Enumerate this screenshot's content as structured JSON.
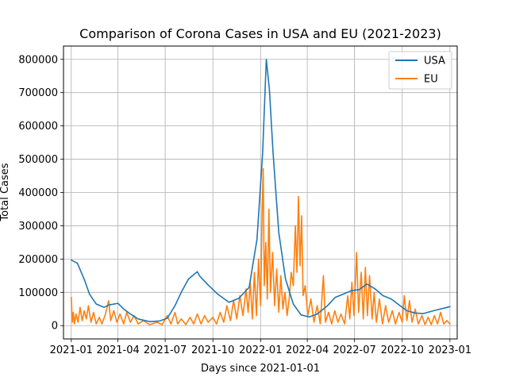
{
  "chart_data": {
    "type": "line",
    "title": "Comparison of Corona Cases in USA and EU (2021-2023)",
    "xlabel": "Days since 2021-01-01",
    "ylabel": "Total Cases",
    "grid": true,
    "legend_position": "top-right",
    "xlim": [
      "2020-12-17",
      "2023-01-15"
    ],
    "ylim": [
      -40000,
      840000
    ],
    "x_ticks": [
      {
        "date": "2021-01-01",
        "label": "2021-01"
      },
      {
        "date": "2021-04-01",
        "label": "2021-04"
      },
      {
        "date": "2021-07-01",
        "label": "2021-07"
      },
      {
        "date": "2021-10-01",
        "label": "2021-10"
      },
      {
        "date": "2022-01-01",
        "label": "2022-01"
      },
      {
        "date": "2022-04-01",
        "label": "2022-04"
      },
      {
        "date": "2022-07-01",
        "label": "2022-07"
      },
      {
        "date": "2022-10-01",
        "label": "2022-10"
      },
      {
        "date": "2023-01-01",
        "label": "2023-01"
      }
    ],
    "y_ticks": [
      0,
      100000,
      200000,
      300000,
      400000,
      500000,
      600000,
      700000,
      800000
    ],
    "series": [
      {
        "name": "USA",
        "color": "#1f77b4",
        "points": [
          [
            "2021-01-01",
            197000
          ],
          [
            "2021-01-13",
            187000
          ],
          [
            "2021-01-27",
            135000
          ],
          [
            "2021-02-05",
            95000
          ],
          [
            "2021-02-18",
            65000
          ],
          [
            "2021-03-05",
            55000
          ],
          [
            "2021-03-15",
            62000
          ],
          [
            "2021-04-01",
            67000
          ],
          [
            "2021-04-12",
            50000
          ],
          [
            "2021-04-25",
            35000
          ],
          [
            "2021-05-10",
            20000
          ],
          [
            "2021-06-01",
            12000
          ],
          [
            "2021-06-20",
            14000
          ],
          [
            "2021-07-05",
            22000
          ],
          [
            "2021-07-20",
            60000
          ],
          [
            "2021-08-01",
            100000
          ],
          [
            "2021-08-15",
            140000
          ],
          [
            "2021-09-01",
            162000
          ],
          [
            "2021-09-05",
            150000
          ],
          [
            "2021-09-20",
            125000
          ],
          [
            "2021-10-10",
            95000
          ],
          [
            "2021-11-01",
            70000
          ],
          [
            "2021-11-20",
            82000
          ],
          [
            "2021-12-10",
            115000
          ],
          [
            "2021-12-25",
            260000
          ],
          [
            "2022-01-05",
            520000
          ],
          [
            "2022-01-12",
            800000
          ],
          [
            "2022-01-18",
            710000
          ],
          [
            "2022-01-25",
            520000
          ],
          [
            "2022-02-05",
            280000
          ],
          [
            "2022-02-18",
            140000
          ],
          [
            "2022-03-05",
            65000
          ],
          [
            "2022-03-20",
            32000
          ],
          [
            "2022-04-05",
            26000
          ],
          [
            "2022-04-20",
            35000
          ],
          [
            "2022-05-10",
            60000
          ],
          [
            "2022-05-25",
            85000
          ],
          [
            "2022-06-10",
            95000
          ],
          [
            "2022-06-25",
            105000
          ],
          [
            "2022-07-10",
            108000
          ],
          [
            "2022-07-25",
            125000
          ],
          [
            "2022-08-10",
            110000
          ],
          [
            "2022-08-25",
            90000
          ],
          [
            "2022-09-10",
            80000
          ],
          [
            "2022-09-25",
            62000
          ],
          [
            "2022-10-10",
            45000
          ],
          [
            "2022-10-25",
            38000
          ],
          [
            "2022-11-10",
            36000
          ],
          [
            "2022-12-01",
            45000
          ],
          [
            "2023-01-01",
            57000
          ]
        ]
      },
      {
        "name": "EU",
        "color": "#ff7f0e",
        "points": [
          [
            "2021-01-01",
            85000
          ],
          [
            "2021-01-03",
            10000
          ],
          [
            "2021-01-05",
            40000
          ],
          [
            "2021-01-07",
            5000
          ],
          [
            "2021-01-10",
            35000
          ],
          [
            "2021-01-14",
            10000
          ],
          [
            "2021-01-18",
            55000
          ],
          [
            "2021-01-22",
            15000
          ],
          [
            "2021-01-26",
            45000
          ],
          [
            "2021-01-30",
            20000
          ],
          [
            "2021-02-03",
            60000
          ],
          [
            "2021-02-08",
            10000
          ],
          [
            "2021-02-13",
            40000
          ],
          [
            "2021-02-18",
            5000
          ],
          [
            "2021-02-24",
            25000
          ],
          [
            "2021-03-01",
            5000
          ],
          [
            "2021-03-08",
            35000
          ],
          [
            "2021-03-14",
            75000
          ],
          [
            "2021-03-18",
            15000
          ],
          [
            "2021-03-24",
            45000
          ],
          [
            "2021-03-30",
            10000
          ],
          [
            "2021-04-05",
            35000
          ],
          [
            "2021-04-12",
            5000
          ],
          [
            "2021-04-18",
            40000
          ],
          [
            "2021-04-25",
            10000
          ],
          [
            "2021-05-02",
            30000
          ],
          [
            "2021-05-10",
            5000
          ],
          [
            "2021-05-20",
            15000
          ],
          [
            "2021-06-01",
            3000
          ],
          [
            "2021-06-15",
            10000
          ],
          [
            "2021-06-25",
            3000
          ],
          [
            "2021-07-05",
            30000
          ],
          [
            "2021-07-12",
            5000
          ],
          [
            "2021-07-20",
            40000
          ],
          [
            "2021-07-25",
            5000
          ],
          [
            "2021-08-01",
            20000
          ],
          [
            "2021-08-10",
            3000
          ],
          [
            "2021-08-18",
            25000
          ],
          [
            "2021-08-25",
            5000
          ],
          [
            "2021-09-01",
            35000
          ],
          [
            "2021-09-08",
            5000
          ],
          [
            "2021-09-15",
            30000
          ],
          [
            "2021-09-22",
            10000
          ],
          [
            "2021-10-01",
            25000
          ],
          [
            "2021-10-08",
            5000
          ],
          [
            "2021-10-15",
            40000
          ],
          [
            "2021-10-22",
            10000
          ],
          [
            "2021-10-28",
            60000
          ],
          [
            "2021-11-04",
            15000
          ],
          [
            "2021-11-10",
            75000
          ],
          [
            "2021-11-16",
            20000
          ],
          [
            "2021-11-22",
            90000
          ],
          [
            "2021-11-28",
            30000
          ],
          [
            "2021-12-04",
            110000
          ],
          [
            "2021-12-08",
            40000
          ],
          [
            "2021-12-12",
            130000
          ],
          [
            "2021-12-16",
            20000
          ],
          [
            "2021-12-20",
            160000
          ],
          [
            "2021-12-24",
            30000
          ],
          [
            "2021-12-28",
            200000
          ],
          [
            "2022-01-01",
            60000
          ],
          [
            "2022-01-04",
            350000
          ],
          [
            "2022-01-06",
            472000
          ],
          [
            "2022-01-08",
            120000
          ],
          [
            "2022-01-11",
            250000
          ],
          [
            "2022-01-14",
            80000
          ],
          [
            "2022-01-17",
            350000
          ],
          [
            "2022-01-20",
            100000
          ],
          [
            "2022-01-24",
            220000
          ],
          [
            "2022-01-28",
            60000
          ],
          [
            "2022-02-01",
            170000
          ],
          [
            "2022-02-05",
            40000
          ],
          [
            "2022-02-09",
            150000
          ],
          [
            "2022-02-13",
            50000
          ],
          [
            "2022-02-17",
            100000
          ],
          [
            "2022-02-21",
            30000
          ],
          [
            "2022-02-25",
            80000
          ],
          [
            "2022-03-01",
            160000
          ],
          [
            "2022-03-05",
            120000
          ],
          [
            "2022-03-09",
            300000
          ],
          [
            "2022-03-12",
            160000
          ],
          [
            "2022-03-15",
            388000
          ],
          [
            "2022-03-18",
            180000
          ],
          [
            "2022-03-21",
            330000
          ],
          [
            "2022-03-24",
            90000
          ],
          [
            "2022-03-28",
            120000
          ],
          [
            "2022-04-02",
            30000
          ],
          [
            "2022-04-08",
            80000
          ],
          [
            "2022-04-14",
            10000
          ],
          [
            "2022-04-20",
            60000
          ],
          [
            "2022-04-26",
            5000
          ],
          [
            "2022-05-02",
            150000
          ],
          [
            "2022-05-06",
            10000
          ],
          [
            "2022-05-12",
            40000
          ],
          [
            "2022-05-18",
            5000
          ],
          [
            "2022-05-24",
            45000
          ],
          [
            "2022-05-30",
            10000
          ],
          [
            "2022-06-05",
            35000
          ],
          [
            "2022-06-12",
            5000
          ],
          [
            "2022-06-18",
            90000
          ],
          [
            "2022-06-22",
            20000
          ],
          [
            "2022-06-26",
            130000
          ],
          [
            "2022-06-30",
            30000
          ],
          [
            "2022-07-05",
            220000
          ],
          [
            "2022-07-09",
            40000
          ],
          [
            "2022-07-14",
            160000
          ],
          [
            "2022-07-18",
            20000
          ],
          [
            "2022-07-22",
            175000
          ],
          [
            "2022-07-26",
            30000
          ],
          [
            "2022-07-30",
            150000
          ],
          [
            "2022-08-04",
            20000
          ],
          [
            "2022-08-08",
            100000
          ],
          [
            "2022-08-12",
            10000
          ],
          [
            "2022-08-18",
            80000
          ],
          [
            "2022-08-24",
            5000
          ],
          [
            "2022-08-30",
            60000
          ],
          [
            "2022-09-05",
            10000
          ],
          [
            "2022-09-12",
            45000
          ],
          [
            "2022-09-18",
            5000
          ],
          [
            "2022-09-25",
            40000
          ],
          [
            "2022-10-01",
            10000
          ],
          [
            "2022-10-05",
            90000
          ],
          [
            "2022-10-10",
            15000
          ],
          [
            "2022-10-15",
            75000
          ],
          [
            "2022-10-20",
            10000
          ],
          [
            "2022-10-26",
            50000
          ],
          [
            "2022-11-01",
            5000
          ],
          [
            "2022-11-08",
            30000
          ],
          [
            "2022-11-14",
            3000
          ],
          [
            "2022-11-20",
            25000
          ],
          [
            "2022-11-26",
            3000
          ],
          [
            "2022-12-02",
            30000
          ],
          [
            "2022-12-08",
            5000
          ],
          [
            "2022-12-14",
            40000
          ],
          [
            "2022-12-20",
            5000
          ],
          [
            "2022-12-26",
            15000
          ],
          [
            "2023-01-01",
            5000
          ]
        ]
      }
    ]
  }
}
